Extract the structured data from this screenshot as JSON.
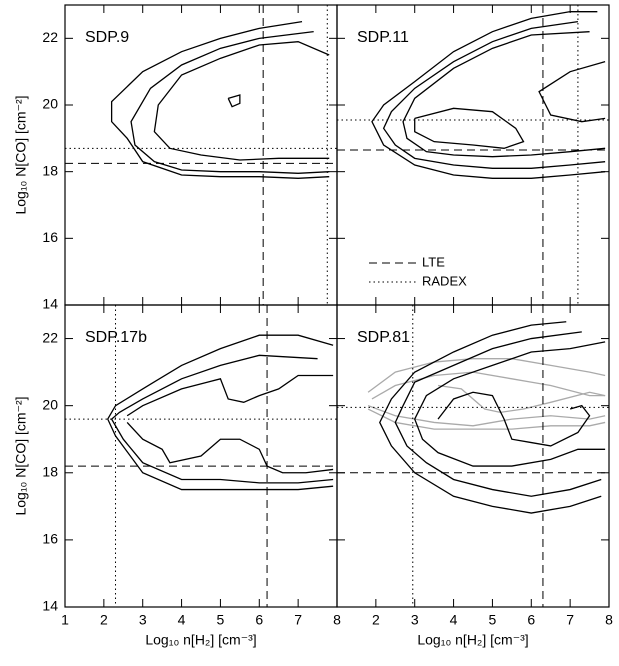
{
  "chart_data": [
    {
      "type": "contour",
      "title": "SDP.9",
      "ylabel": "Log₁₀ N[CO] [cm⁻²]",
      "xlim": [
        1,
        8
      ],
      "ylim": [
        14,
        23
      ],
      "yticks": [
        14,
        16,
        18,
        20,
        22
      ],
      "lte": {
        "x": 6.1,
        "y": 18.25
      },
      "radex": {
        "x": 7.75,
        "y": 18.7
      },
      "series": [
        {
          "color": "#000000",
          "x": [
            7.1,
            6,
            5,
            4,
            3,
            2.2,
            2.2,
            2.6,
            3,
            4,
            5,
            6,
            7,
            7.8
          ],
          "y": [
            22.5,
            22.3,
            22,
            21.6,
            21,
            20.1,
            19.5,
            19,
            18.3,
            17.9,
            17.85,
            17.85,
            17.8,
            17.85
          ]
        },
        {
          "color": "#000000",
          "x": [
            7.4,
            6,
            5,
            4,
            3.2,
            2.7,
            2.8,
            3.3,
            4,
            5,
            6,
            7,
            7.8
          ],
          "y": [
            22.2,
            22,
            21.7,
            21.2,
            20.5,
            19.5,
            18.8,
            18.3,
            18.05,
            18,
            18,
            17.95,
            18
          ]
        },
        {
          "color": "#000000",
          "x": [
            7.8,
            7,
            6,
            5,
            4,
            3.4,
            3.3,
            3.7,
            4.5,
            5.5,
            6.5,
            7.5,
            7.8
          ],
          "y": [
            21.5,
            21.9,
            21.8,
            21.4,
            20.9,
            20,
            19.2,
            18.7,
            18.5,
            18.35,
            18.4,
            18.4,
            18.4
          ]
        },
        {
          "color": "#000000",
          "x": [
            5.2,
            5.5,
            5.5,
            5.3,
            5.2
          ],
          "y": [
            20.2,
            20.3,
            20.05,
            19.95,
            20.2
          ]
        }
      ]
    },
    {
      "type": "contour",
      "title": "SDP.11",
      "xlim": [
        1,
        8
      ],
      "ylim": [
        14,
        23
      ],
      "legend_labels": [
        "LTE",
        "RADEX"
      ],
      "lte": {
        "x": 6.3,
        "y": 18.65
      },
      "radex": {
        "x": 7.2,
        "y": 19.55
      },
      "series": [
        {
          "color": "#000000",
          "x": [
            7.7,
            7,
            6,
            5,
            4,
            3,
            2.2,
            1.9,
            2.2,
            3,
            4,
            5,
            6,
            7,
            7.9
          ],
          "y": [
            22.8,
            22.8,
            22.6,
            22.2,
            21.6,
            20.7,
            20,
            19.5,
            18.8,
            18.2,
            17.9,
            17.8,
            17.8,
            17.9,
            18
          ]
        },
        {
          "color": "#000000",
          "x": [
            7.2,
            6,
            5,
            4,
            3,
            2.4,
            2.2,
            2.5,
            3,
            4,
            5,
            6,
            7,
            7.9
          ],
          "y": [
            22.5,
            22.3,
            21.9,
            21.3,
            20.5,
            19.8,
            19.3,
            18.8,
            18.4,
            18.2,
            18.1,
            18.1,
            18.2,
            18.3
          ]
        },
        {
          "color": "#000000",
          "x": [
            7.5,
            6,
            5,
            4,
            3,
            2.7,
            2.8,
            3.3,
            4,
            5,
            6,
            7,
            7.9
          ],
          "y": [
            22.2,
            22.1,
            21.7,
            21.1,
            20.2,
            19.5,
            19,
            18.6,
            18.5,
            18.45,
            18.5,
            18.6,
            18.7
          ]
        },
        {
          "color": "#000000",
          "x": [
            3,
            4,
            5,
            5.6,
            5.8,
            5.3,
            4.5,
            3.5,
            3,
            3
          ],
          "y": [
            19.6,
            19.9,
            19.8,
            19.3,
            18.9,
            18.7,
            18.8,
            18.9,
            19.2,
            19.6
          ]
        },
        {
          "color": "#000000",
          "x": [
            7.9,
            7,
            6.2,
            6.5,
            7.3,
            7.9
          ],
          "y": [
            21.3,
            21,
            20.4,
            19.7,
            19.5,
            19.6
          ]
        }
      ]
    },
    {
      "type": "contour",
      "title": "SDP.17b",
      "ylabel": "Log₁₀ N[CO] [cm⁻²]",
      "xlabel": "Log₁₀ n[H₂] [cm⁻³]",
      "xlim": [
        1,
        8
      ],
      "ylim": [
        14,
        23
      ],
      "xticks": [
        1,
        2,
        3,
        4,
        5,
        6,
        7,
        8
      ],
      "yticks": [
        14,
        16,
        18,
        20,
        22
      ],
      "lte": {
        "x": 6.2,
        "y": 18.2
      },
      "radex": {
        "x": 2.3,
        "y": 19.6
      },
      "series": [
        {
          "color": "#000000",
          "x": [
            7.9,
            7,
            6,
            5,
            4,
            3,
            2.3,
            2.1,
            2.3,
            3,
            4,
            5,
            6,
            7,
            7.9
          ],
          "y": [
            21.8,
            22.1,
            22.1,
            21.7,
            21.2,
            20.5,
            20,
            19.6,
            19.1,
            18,
            17.5,
            17.5,
            17.5,
            17.5,
            17.6
          ]
        },
        {
          "color": "#000000",
          "x": [
            7.5,
            6,
            5,
            4,
            3,
            2.4,
            2.2,
            2.5,
            3,
            4,
            5,
            6,
            7,
            7.9
          ],
          "y": [
            21.4,
            21.5,
            21.2,
            20.8,
            20.2,
            19.8,
            19.6,
            19,
            18.3,
            17.8,
            17.8,
            17.7,
            17.7,
            17.8
          ]
        },
        {
          "color": "#000000",
          "x": [
            2.6,
            3,
            4,
            5,
            5.2,
            5.6,
            6,
            6.5,
            7,
            7.9
          ],
          "y": [
            19.7,
            20,
            20.5,
            20.8,
            20.2,
            20.1,
            20.3,
            20.5,
            20.9,
            20.9
          ]
        },
        {
          "color": "#000000",
          "x": [
            2.6,
            3,
            3.5,
            3.7,
            4.5,
            5,
            5.5,
            6,
            6.2,
            6.6,
            7.2,
            7.9
          ],
          "y": [
            19.5,
            19,
            18.7,
            18.3,
            18.5,
            19,
            19,
            18.7,
            18.2,
            18,
            18,
            18.1
          ]
        }
      ]
    },
    {
      "type": "contour",
      "title": "SDP.81",
      "xlabel": "Log₁₀ n[H₂] [cm⁻³]",
      "xlim": [
        1,
        8
      ],
      "ylim": [
        14,
        23
      ],
      "xticks": [
        2,
        3,
        4,
        5,
        6,
        7,
        8
      ],
      "lte": {
        "x": 6.3,
        "y": 18.0
      },
      "radex": {
        "x": 2.95,
        "y": 19.95
      },
      "series": [
        {
          "color": "#aaaaaa",
          "x": [
            1.8,
            2.5,
            3.5,
            4.5,
            5.5,
            6.5,
            7.5,
            7.9
          ],
          "y": [
            20.4,
            21,
            21.3,
            21.4,
            21.4,
            21.2,
            21,
            20.9
          ]
        },
        {
          "color": "#aaaaaa",
          "x": [
            1.9,
            2.5,
            3.5,
            4.5,
            5.5,
            6.5,
            7.5,
            7.9
          ],
          "y": [
            20.2,
            20.6,
            20.9,
            21,
            20.8,
            20.6,
            20.3,
            20.3
          ]
        },
        {
          "color": "#aaaaaa",
          "x": [
            1.8,
            2.5,
            3.5,
            4.5,
            5.5,
            6.5,
            7.5,
            7.9
          ],
          "y": [
            19.9,
            19.5,
            19.3,
            19.3,
            19.3,
            19.4,
            19.4,
            19.5
          ]
        },
        {
          "color": "#aaaaaa",
          "x": [
            1.8,
            2.5,
            3.5,
            4.5,
            5.5,
            6.5,
            7.5,
            7.9
          ],
          "y": [
            20,
            19.7,
            19.5,
            19.4,
            19.6,
            19.7,
            19.6,
            19.7
          ]
        },
        {
          "color": "#aaaaaa",
          "x": [
            3.6,
            4.2,
            4.8,
            5.2,
            5.8,
            6.5,
            7.5,
            7.9
          ],
          "y": [
            20.6,
            20.5,
            19.9,
            19.8,
            19.9,
            20.1,
            20.4,
            20.3
          ]
        },
        {
          "color": "#000000",
          "x": [
            6.9,
            6,
            5,
            4,
            3,
            2.4,
            2.1,
            2.4,
            3,
            4,
            5,
            6,
            7,
            7.8
          ],
          "y": [
            22.5,
            22.4,
            22.1,
            21.6,
            21,
            20.2,
            19.5,
            18.8,
            18,
            17.3,
            17,
            16.8,
            17,
            17.3
          ]
        },
        {
          "color": "#000000",
          "x": [
            7.3,
            6,
            5,
            4,
            3,
            2.7,
            2.5,
            2.8,
            3.3,
            4,
            5,
            6,
            7,
            7.8
          ],
          "y": [
            22.2,
            22,
            21.7,
            21.2,
            20.7,
            20,
            19.5,
            18.8,
            18.3,
            17.8,
            17.5,
            17.3,
            17.5,
            17.8
          ]
        },
        {
          "color": "#000000",
          "x": [
            7.9,
            7,
            6,
            5,
            4,
            3.3,
            3,
            3.2,
            3.6,
            4.5,
            5.5,
            6.5,
            7.2,
            7.9
          ],
          "y": [
            21.9,
            21.7,
            21.6,
            21.2,
            20.8,
            20.3,
            19.6,
            19,
            18.6,
            18.2,
            18.2,
            18.4,
            18.7,
            18.7
          ]
        },
        {
          "color": "#000000",
          "x": [
            3.6,
            4,
            4.5,
            5,
            5.3,
            5.5,
            6,
            6.5,
            7.2,
            7.5,
            7.3,
            7
          ],
          "y": [
            19.6,
            20.2,
            20.4,
            20.3,
            19.6,
            19,
            18.9,
            18.8,
            19.2,
            19.7,
            20,
            19.9
          ]
        }
      ]
    }
  ]
}
